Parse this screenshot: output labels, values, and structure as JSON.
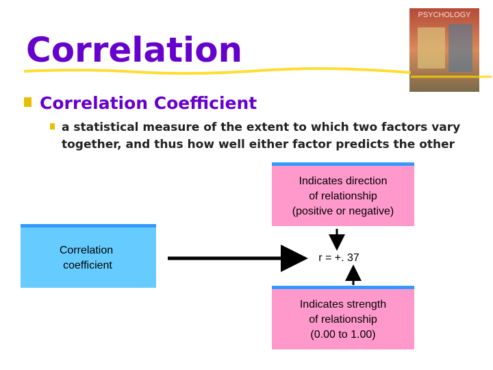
{
  "header": {
    "title": "Correlation"
  },
  "book": {
    "title": "PSYCHOLOGY"
  },
  "bullets": [
    {
      "text": "Correlation Coefficient",
      "sub": [
        "a statistical measure of the extent to which two factors vary",
        "together, and thus how well either factor predicts the other"
      ]
    }
  ],
  "diagram": {
    "source": {
      "lines": [
        "Correlation",
        "coefficient"
      ]
    },
    "value": "r = +. 37",
    "top": {
      "lines": [
        "Indicates direction",
        "of relationship",
        "(positive or negative)"
      ]
    },
    "bottom": {
      "lines": [
        "Indicates strength",
        "of relationship",
        "(0.00 to 1.00)"
      ]
    }
  }
}
